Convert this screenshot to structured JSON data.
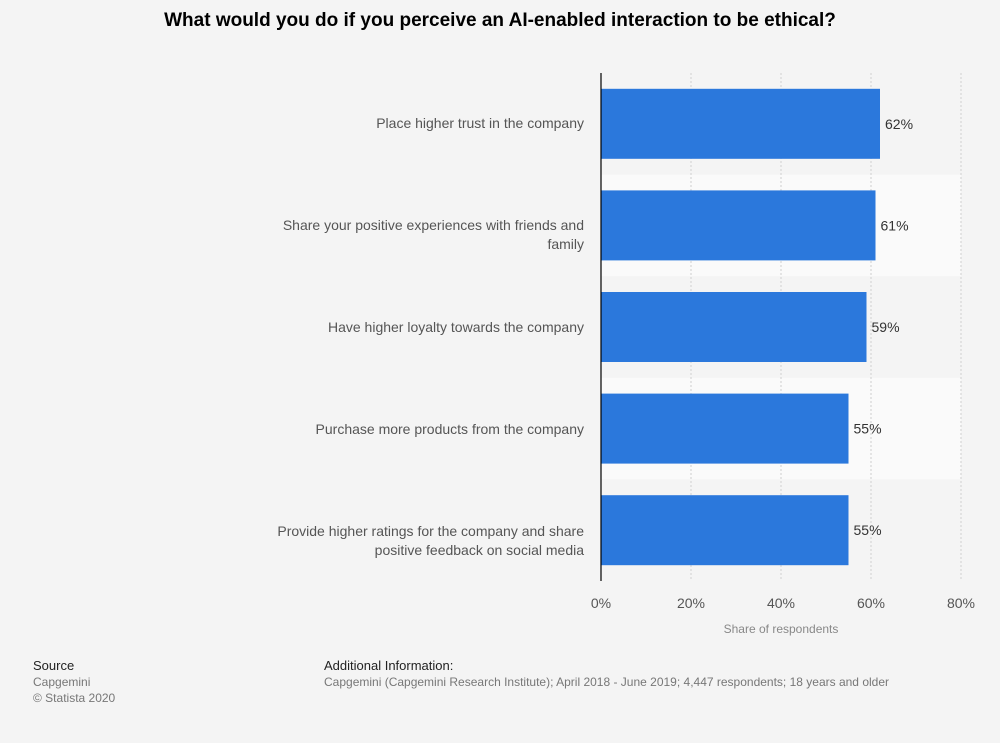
{
  "chart_data": {
    "type": "bar",
    "orientation": "horizontal",
    "title": "What would you do if you perceive an AI-enabled interaction to be ethical?",
    "categories": [
      "Place higher trust in the company",
      "Share your positive experiences with friends and family",
      "Have higher loyalty towards the company",
      "Purchase more products from the company",
      "Provide higher ratings for the company and share positive feedback on social media"
    ],
    "values": [
      62,
      61,
      59,
      55,
      55
    ],
    "value_labels": [
      "62%",
      "61%",
      "59%",
      "55%",
      "55%"
    ],
    "xlabel": "Share of respondents",
    "xlim": [
      0,
      80
    ],
    "xticks": [
      "0%",
      "20%",
      "40%",
      "60%",
      "80%"
    ],
    "bar_color": "#2b78dc",
    "grid": true
  },
  "source": {
    "heading": "Source",
    "lines": [
      "Capgemini",
      "© Statista 2020"
    ]
  },
  "additional_info": {
    "heading": "Additional Information:",
    "text": "Capgemini (Capgemini Research Institute); April 2018 - June 2019; 4,447 respondents; 18 years and older"
  }
}
